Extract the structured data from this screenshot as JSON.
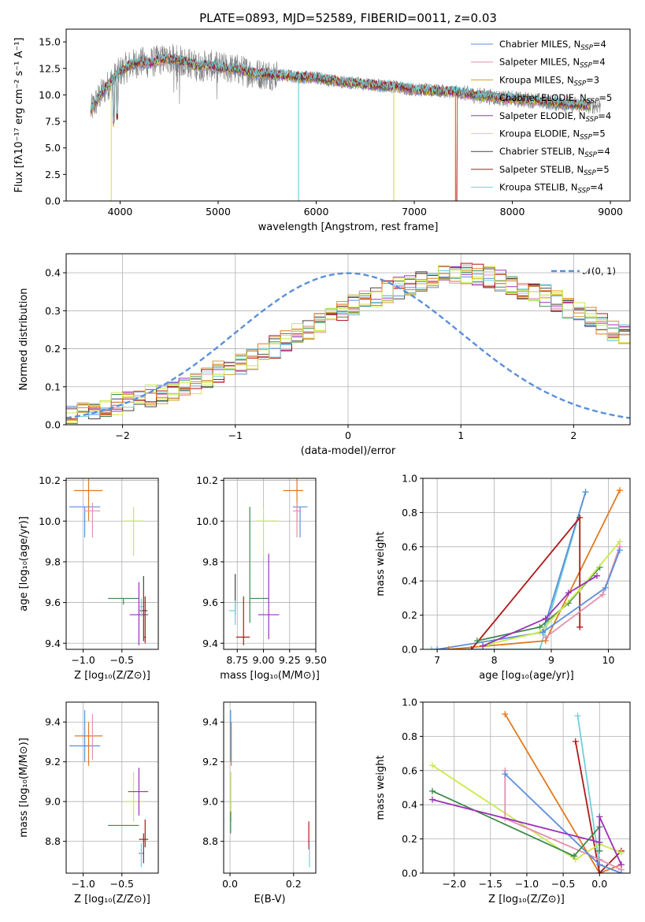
{
  "colors": {
    "Chabrier MILES": "#5b8fdb",
    "Salpeter MILES": "#e58fb0",
    "Kroupa MILES": "#d0a020",
    "Chabrier ELODIE": "#3f8a4a",
    "Salpeter ELODIE": "#9b30b8",
    "Kroupa ELODIE": "#d8e24a",
    "Chabrier STELIB": "#444444",
    "Salpeter STELIB": "#b01818",
    "Kroupa STELIB": "#70d0d8",
    "orange_model": "#e07a20",
    "lime_model": "#c8ea4c",
    "data_spectrum": "#7f7f7f",
    "normal_curve": "#5b8fdb"
  },
  "chart_data": [
    {
      "type": "line",
      "title": "PLATE=0893, MJD=52589, FIBERID=0011, z=0.03",
      "xlabel": "wavelength [Angstrom, rest frame]",
      "ylabel": "Flux [fλ10⁻¹⁷ erg cm⁻² s⁻¹ A⁻¹]",
      "xlim": [
        3450,
        9200
      ],
      "ylim": [
        0,
        16.2
      ],
      "xticks": [
        4000,
        5000,
        6000,
        7000,
        8000,
        9000
      ],
      "yticks": [
        0.0,
        2.5,
        5.0,
        7.5,
        10.0,
        12.5,
        15.0
      ],
      "grid": false,
      "legend_position": "top-right",
      "legend": [
        {
          "name": "Chabrier MILES, N",
          "sub": "SSP",
          "tail": "=4"
        },
        {
          "name": "Salpeter MILES, N",
          "sub": "SSP",
          "tail": "=4"
        },
        {
          "name": "Kroupa MILES, N",
          "sub": "SSP",
          "tail": "=3"
        },
        {
          "name": "Chabrier ELODIE, N",
          "sub": "SSP",
          "tail": "=5"
        },
        {
          "name": "Salpeter ELODIE, N",
          "sub": "SSP",
          "tail": "=4"
        },
        {
          "name": "Kroupa ELODIE, N",
          "sub": "SSP",
          "tail": "=5"
        },
        {
          "name": "Chabrier STELIB, N",
          "sub": "SSP",
          "tail": "=4"
        },
        {
          "name": "Salpeter STELIB, N",
          "sub": "SSP",
          "tail": "=5"
        },
        {
          "name": "Kroupa STELIB, N",
          "sub": "SSP",
          "tail": "=4"
        }
      ],
      "continuum_x": [
        3700,
        3800,
        3900,
        4000,
        4100,
        4200,
        4300,
        4400,
        4500,
        4600,
        4700,
        4800,
        4900,
        5000,
        5200,
        5400,
        5600,
        5800,
        6000,
        6200,
        6400,
        6600,
        6800,
        7000,
        7200,
        7400,
        7600,
        7800,
        8000,
        8200,
        8400,
        8600,
        8800
      ],
      "continuum_y": [
        8.5,
        10.0,
        11.2,
        12.2,
        12.8,
        13.1,
        13.0,
        13.3,
        13.4,
        13.2,
        13.0,
        12.7,
        12.8,
        12.6,
        12.4,
        12.0,
        11.9,
        11.7,
        11.6,
        11.3,
        11.1,
        10.9,
        10.8,
        10.5,
        10.4,
        10.3,
        10.0,
        9.8,
        9.6,
        9.5,
        9.3,
        9.1,
        9.0
      ],
      "gaps_visible": [
        5820,
        6790,
        7420
      ]
    },
    {
      "type": "bar",
      "subtype": "step-histogram",
      "xlabel": "(data-model)/error",
      "ylabel": "Normed distribution",
      "xlim": [
        -2.5,
        2.5
      ],
      "ylim": [
        0,
        0.45
      ],
      "xticks": [
        -2,
        -1,
        0,
        1,
        2
      ],
      "yticks": [
        0.0,
        0.1,
        0.2,
        0.3,
        0.4
      ],
      "grid": true,
      "legend_position": "top-right",
      "legend_label": "𝒩(0, 1)",
      "bin_width": 0.1,
      "bins_start": -2.5,
      "base_values": [
        0.02,
        0.03,
        0.045,
        0.05,
        0.055,
        0.06,
        0.065,
        0.075,
        0.085,
        0.09,
        0.1,
        0.11,
        0.125,
        0.14,
        0.15,
        0.16,
        0.175,
        0.19,
        0.205,
        0.22,
        0.24,
        0.255,
        0.27,
        0.285,
        0.3,
        0.315,
        0.33,
        0.34,
        0.35,
        0.36,
        0.37,
        0.38,
        0.39,
        0.395,
        0.4,
        0.4,
        0.395,
        0.39,
        0.38,
        0.37,
        0.36,
        0.35,
        0.34,
        0.325,
        0.31,
        0.295,
        0.28,
        0.265,
        0.25,
        0.235
      ]
    },
    {
      "type": "scatter",
      "xlabel": "Z [log₁₀(Z/Z⊙)]",
      "ylabel": "age  [log₁₀(age/yr)]",
      "xlim": [
        -1.22,
        -0.03
      ],
      "ylim": [
        9.37,
        10.21
      ],
      "xticks": [
        -1.0,
        -0.5
      ],
      "yticks": [
        9.4,
        9.6,
        9.8,
        10.0,
        10.2
      ],
      "grid": true,
      "points": [
        {
          "model": "Chabrier MILES",
          "x": -0.98,
          "y": 10.07,
          "xerr": [
            0.2,
            0.2
          ],
          "yerr": [
            0.15,
            0.0
          ]
        },
        {
          "model": "orange",
          "x": -0.93,
          "y": 10.15,
          "xerr": [
            0.19,
            0.18
          ],
          "yerr": [
            0.15,
            0.07
          ]
        },
        {
          "model": "Salpeter MILES",
          "x": -0.88,
          "y": 10.05,
          "xerr": [
            0.1,
            0.1
          ],
          "yerr": [
            0.13,
            0.04
          ]
        },
        {
          "model": "lime",
          "x": -0.35,
          "y": 10.0,
          "xerr": [
            0.13,
            0.13
          ],
          "yerr": [
            0.17,
            0.07
          ]
        },
        {
          "model": "Chabrier ELODIE",
          "x": -0.48,
          "y": 9.62,
          "xerr": [
            0.2,
            0.2
          ],
          "yerr": [
            0.03,
            0.0
          ]
        },
        {
          "model": "Salpeter ELODIE",
          "x": -0.28,
          "y": 9.54,
          "xerr": [
            0.12,
            0.12
          ],
          "yerr": [
            0.15,
            0.16
          ]
        },
        {
          "model": "Chabrier STELIB",
          "x": -0.22,
          "y": 9.56,
          "xerr": [
            0.05,
            0.05
          ],
          "yerr": [
            0.15,
            0.17
          ]
        },
        {
          "model": "Kroupa STELIB",
          "x": -0.25,
          "y": 9.58,
          "xerr": [
            0.02,
            0.02
          ],
          "yerr": [
            0.05,
            0.04
          ]
        },
        {
          "model": "Salpeter STELIB",
          "x": -0.2,
          "y": 9.43,
          "xerr": [
            0.02,
            0.01
          ],
          "yerr": [
            0.03,
            0.2
          ]
        }
      ]
    },
    {
      "type": "scatter",
      "xlabel": "mass [log₁₀(M/M⊙)]",
      "ylabel": "",
      "xlim": [
        8.62,
        9.5
      ],
      "ylim": [
        9.37,
        10.21
      ],
      "xticks": [
        8.75,
        9.0,
        9.25,
        9.5
      ],
      "yticks": [
        9.4,
        9.6,
        9.8,
        10.0,
        10.2
      ],
      "grid": true,
      "points": [
        {
          "model": "Chabrier MILES",
          "x": 9.35,
          "y": 10.07,
          "xerr": [
            0.07,
            0.07
          ],
          "yerr": [
            0.15,
            0.0
          ]
        },
        {
          "model": "orange",
          "x": 9.32,
          "y": 10.15,
          "xerr": [
            0.13,
            0.06
          ],
          "yerr": [
            0.15,
            0.07
          ]
        },
        {
          "model": "Salpeter MILES",
          "x": 9.32,
          "y": 10.05,
          "xerr": [
            0.04,
            0.04
          ],
          "yerr": [
            0.13,
            0.04
          ]
        },
        {
          "model": "lime",
          "x": 9.0,
          "y": 10.0,
          "xerr": [
            0.07,
            0.14
          ],
          "yerr": [
            0.17,
            0.07
          ]
        },
        {
          "model": "Chabrier ELODIE",
          "x": 8.87,
          "y": 9.62,
          "xerr": [
            0.0,
            0.18
          ],
          "yerr": [
            0.12,
            0.45
          ]
        },
        {
          "model": "Salpeter ELODIE",
          "x": 9.05,
          "y": 9.54,
          "xerr": [
            0.1,
            0.1
          ],
          "yerr": [
            0.12,
            0.3
          ]
        },
        {
          "model": "Chabrier STELIB",
          "x": 8.73,
          "y": 9.64,
          "xerr": [
            0.0,
            0.0
          ],
          "yerr": [
            0.1,
            0.1
          ]
        },
        {
          "model": "Kroupa STELIB",
          "x": 8.73,
          "y": 9.56,
          "xerr": [
            0.06,
            0.0
          ],
          "yerr": [
            0.07,
            0.05
          ]
        },
        {
          "model": "Salpeter STELIB",
          "x": 8.81,
          "y": 9.43,
          "xerr": [
            0.07,
            0.06
          ],
          "yerr": [
            0.04,
            0.2
          ]
        }
      ]
    },
    {
      "type": "line",
      "xlabel": "age  [log₁₀(age/yr)]",
      "ylabel": "mass weight",
      "xlim": [
        6.75,
        10.38
      ],
      "ylim": [
        0,
        1.0
      ],
      "xticks": [
        7,
        8,
        9,
        10
      ],
      "yticks": [
        0.0,
        0.2,
        0.4,
        0.6,
        0.8,
        1.0
      ],
      "grid": true,
      "series": [
        {
          "model": "Kroupa STELIB",
          "x": [
            6.9,
            8.8,
            9.6
          ],
          "y": [
            0.0,
            0.0,
            0.92
          ]
        },
        {
          "model": "Chabrier MILES",
          "x": [
            7.0,
            8.85,
            9.6
          ],
          "y": [
            0.0,
            0.1,
            0.92
          ]
        },
        {
          "model": "orange",
          "x": [
            7.2,
            8.9,
            10.2
          ],
          "y": [
            0.0,
            0.05,
            0.93
          ]
        },
        {
          "model": "Salpeter STELIB",
          "x": [
            7.6,
            9.5,
            9.5
          ],
          "y": [
            0.0,
            0.77,
            0.13
          ]
        },
        {
          "model": "Chabrier ELODIE",
          "x": [
            7.7,
            8.8,
            9.3,
            9.85
          ],
          "y": [
            0.05,
            0.13,
            0.27,
            0.48
          ]
        },
        {
          "model": "lime",
          "x": [
            7.9,
            8.8,
            9.5,
            10.2
          ],
          "y": [
            0.03,
            0.1,
            0.35,
            0.63
          ]
        },
        {
          "model": "Salpeter ELODIE",
          "x": [
            7.8,
            8.9,
            9.3,
            9.8
          ],
          "y": [
            0.02,
            0.18,
            0.33,
            0.43
          ]
        },
        {
          "model": "Salpeter MILES",
          "x": [
            8.9,
            9.9,
            10.2
          ],
          "y": [
            0.07,
            0.32,
            0.6
          ]
        },
        {
          "model": "Chabrier MILES",
          "x": [
            8.85,
            9.95,
            10.2
          ],
          "y": [
            0.1,
            0.36,
            0.58
          ]
        }
      ]
    },
    {
      "type": "scatter",
      "xlabel": "Z [log₁₀(Z/Z⊙)]",
      "ylabel": "mass [log₁₀(M/M⊙)]",
      "xlim": [
        -1.22,
        -0.03
      ],
      "ylim": [
        8.64,
        9.5
      ],
      "xticks": [
        -1.0,
        -0.5
      ],
      "yticks": [
        8.8,
        9.0,
        9.2,
        9.4
      ],
      "grid": true,
      "points": [
        {
          "model": "Chabrier MILES",
          "x": -0.98,
          "y": 9.28,
          "xerr": [
            0.2,
            0.2
          ],
          "yerr": [
            0.08,
            0.18
          ]
        },
        {
          "model": "orange",
          "x": -0.93,
          "y": 9.33,
          "xerr": [
            0.18,
            0.18
          ],
          "yerr": [
            0.15,
            0.07
          ]
        },
        {
          "model": "Salpeter MILES",
          "x": -0.88,
          "y": 9.33,
          "xerr": [
            0.0,
            0.0
          ],
          "yerr": [
            0.12,
            0.11
          ]
        },
        {
          "model": "lime",
          "x": -0.35,
          "y": 9.0,
          "xerr": [
            0.12,
            0.12
          ],
          "yerr": [
            0.1,
            0.15
          ]
        },
        {
          "model": "Salpeter ELODIE",
          "x": -0.28,
          "y": 9.05,
          "xerr": [
            0.14,
            0.12
          ],
          "yerr": [
            0.12,
            0.12
          ]
        },
        {
          "model": "Chabrier ELODIE",
          "x": -0.48,
          "y": 8.88,
          "xerr": [
            0.2,
            0.2
          ],
          "yerr": [
            0.0,
            0.0
          ]
        },
        {
          "model": "Chabrier STELIB",
          "x": -0.22,
          "y": 8.74,
          "xerr": [
            0.06,
            0.0
          ],
          "yerr": [
            0.05,
            0.1
          ]
        },
        {
          "model": "Kroupa STELIB",
          "x": -0.25,
          "y": 8.74,
          "xerr": [
            0.02,
            0.02
          ],
          "yerr": [
            0.07,
            0.05
          ]
        },
        {
          "model": "Salpeter STELIB",
          "x": -0.2,
          "y": 8.81,
          "xerr": [
            0.08,
            0.04
          ],
          "yerr": [
            0.04,
            0.1
          ]
        }
      ]
    },
    {
      "type": "scatter",
      "xlabel": "E(B-V)",
      "ylabel": "",
      "xlim": [
        -0.02,
        0.27
      ],
      "ylim": [
        8.64,
        9.5
      ],
      "xticks": [
        0.0,
        0.2
      ],
      "yticks": [
        8.8,
        9.0,
        9.2,
        9.4
      ],
      "grid": true,
      "points": [
        {
          "model": "Chabrier MILES",
          "x": 0.002,
          "y": 9.28,
          "xerr": [
            0,
            0
          ],
          "yerr": [
            0.08,
            0.18
          ]
        },
        {
          "model": "orange",
          "x": 0.004,
          "y": 9.33,
          "xerr": [
            0,
            0
          ],
          "yerr": [
            0.15,
            0.07
          ]
        },
        {
          "model": "lime",
          "x": 0.003,
          "y": 9.0,
          "xerr": [
            0,
            0
          ],
          "yerr": [
            0.1,
            0.15
          ]
        },
        {
          "model": "Chabrier ELODIE",
          "x": 0.002,
          "y": 8.9,
          "xerr": [
            0,
            0
          ],
          "yerr": [
            0.06,
            0.05
          ]
        },
        {
          "model": "Salpeter STELIB",
          "x": 0.248,
          "y": 8.8,
          "xerr": [
            0,
            0
          ],
          "yerr": [
            0.04,
            0.1
          ]
        },
        {
          "model": "Kroupa STELIB",
          "x": 0.25,
          "y": 8.74,
          "xerr": [
            0,
            0
          ],
          "yerr": [
            0.07,
            0.05
          ]
        }
      ]
    },
    {
      "type": "line",
      "xlabel": "Z [log₁₀(Z/Z⊙)]",
      "ylabel": "mass weight",
      "xlim": [
        -2.43,
        0.42
      ],
      "ylim": [
        0,
        1.0
      ],
      "xticks": [
        -2.0,
        -1.5,
        -1.0,
        -0.5,
        0.0
      ],
      "yticks": [
        0.0,
        0.2,
        0.4,
        0.6,
        0.8,
        1.0
      ],
      "grid": true,
      "series": [
        {
          "model": "orange",
          "x": [
            -1.3,
            0.0,
            0.3
          ],
          "y": [
            0.93,
            0.0,
            0.05
          ]
        },
        {
          "model": "Kroupa STELIB",
          "x": [
            -0.3,
            0.0,
            0.3
          ],
          "y": [
            0.92,
            0.05,
            0.0
          ]
        },
        {
          "model": "Salpeter STELIB",
          "x": [
            -0.33,
            0.0,
            0.3
          ],
          "y": [
            0.77,
            0.0,
            0.13
          ]
        },
        {
          "model": "lime",
          "x": [
            -2.3,
            -0.33,
            0.0,
            0.3
          ],
          "y": [
            0.63,
            0.08,
            0.17,
            0.12
          ]
        },
        {
          "model": "Salpeter MILES",
          "x": [
            -1.3,
            -1.3,
            0.0,
            0.3
          ],
          "y": [
            0.6,
            0.32,
            0.08,
            0.02
          ]
        },
        {
          "model": "Chabrier MILES",
          "x": [
            -1.3,
            0.0,
            0.3
          ],
          "y": [
            0.58,
            0.05,
            0.0
          ]
        },
        {
          "model": "Chabrier ELODIE",
          "x": [
            -2.3,
            -0.35,
            0.0,
            0.0
          ],
          "y": [
            0.48,
            0.1,
            0.27,
            0.13
          ]
        },
        {
          "model": "Salpeter ELODIE",
          "x": [
            -2.3,
            0.0,
            0.0,
            0.3
          ],
          "y": [
            0.43,
            0.18,
            0.33,
            0.05
          ]
        }
      ]
    }
  ]
}
